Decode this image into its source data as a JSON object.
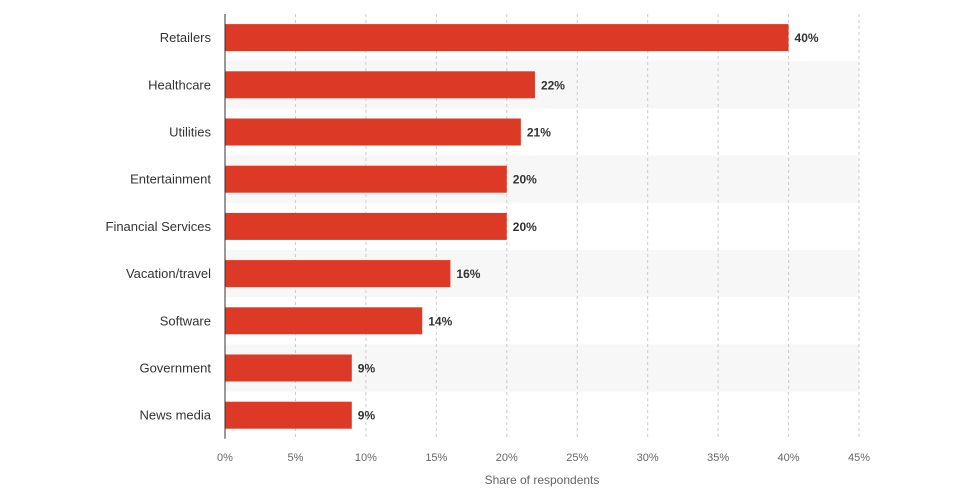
{
  "chart_data": {
    "type": "bar",
    "orientation": "horizontal",
    "categories": [
      "Retailers",
      "Healthcare",
      "Utilities",
      "Entertainment",
      "Financial Services",
      "Vacation/travel",
      "Software",
      "Government",
      "News media"
    ],
    "values": [
      40,
      22,
      21,
      20,
      20,
      16,
      14,
      9,
      9
    ],
    "data_labels": [
      "40%",
      "22%",
      "21%",
      "20%",
      "20%",
      "16%",
      "14%",
      "9%",
      "9%"
    ],
    "xlabel": "Share of respondents",
    "ylabel": "",
    "xlim": [
      0,
      45
    ],
    "x_ticks": [
      0,
      5,
      10,
      15,
      20,
      25,
      30,
      35,
      40,
      45
    ],
    "x_tick_labels": [
      "0%",
      "5%",
      "10%",
      "15%",
      "20%",
      "25%",
      "30%",
      "35%",
      "40%",
      "45%"
    ],
    "grid": true,
    "bar_color": "#dc3a27",
    "band_color": "#f7f7f7"
  }
}
